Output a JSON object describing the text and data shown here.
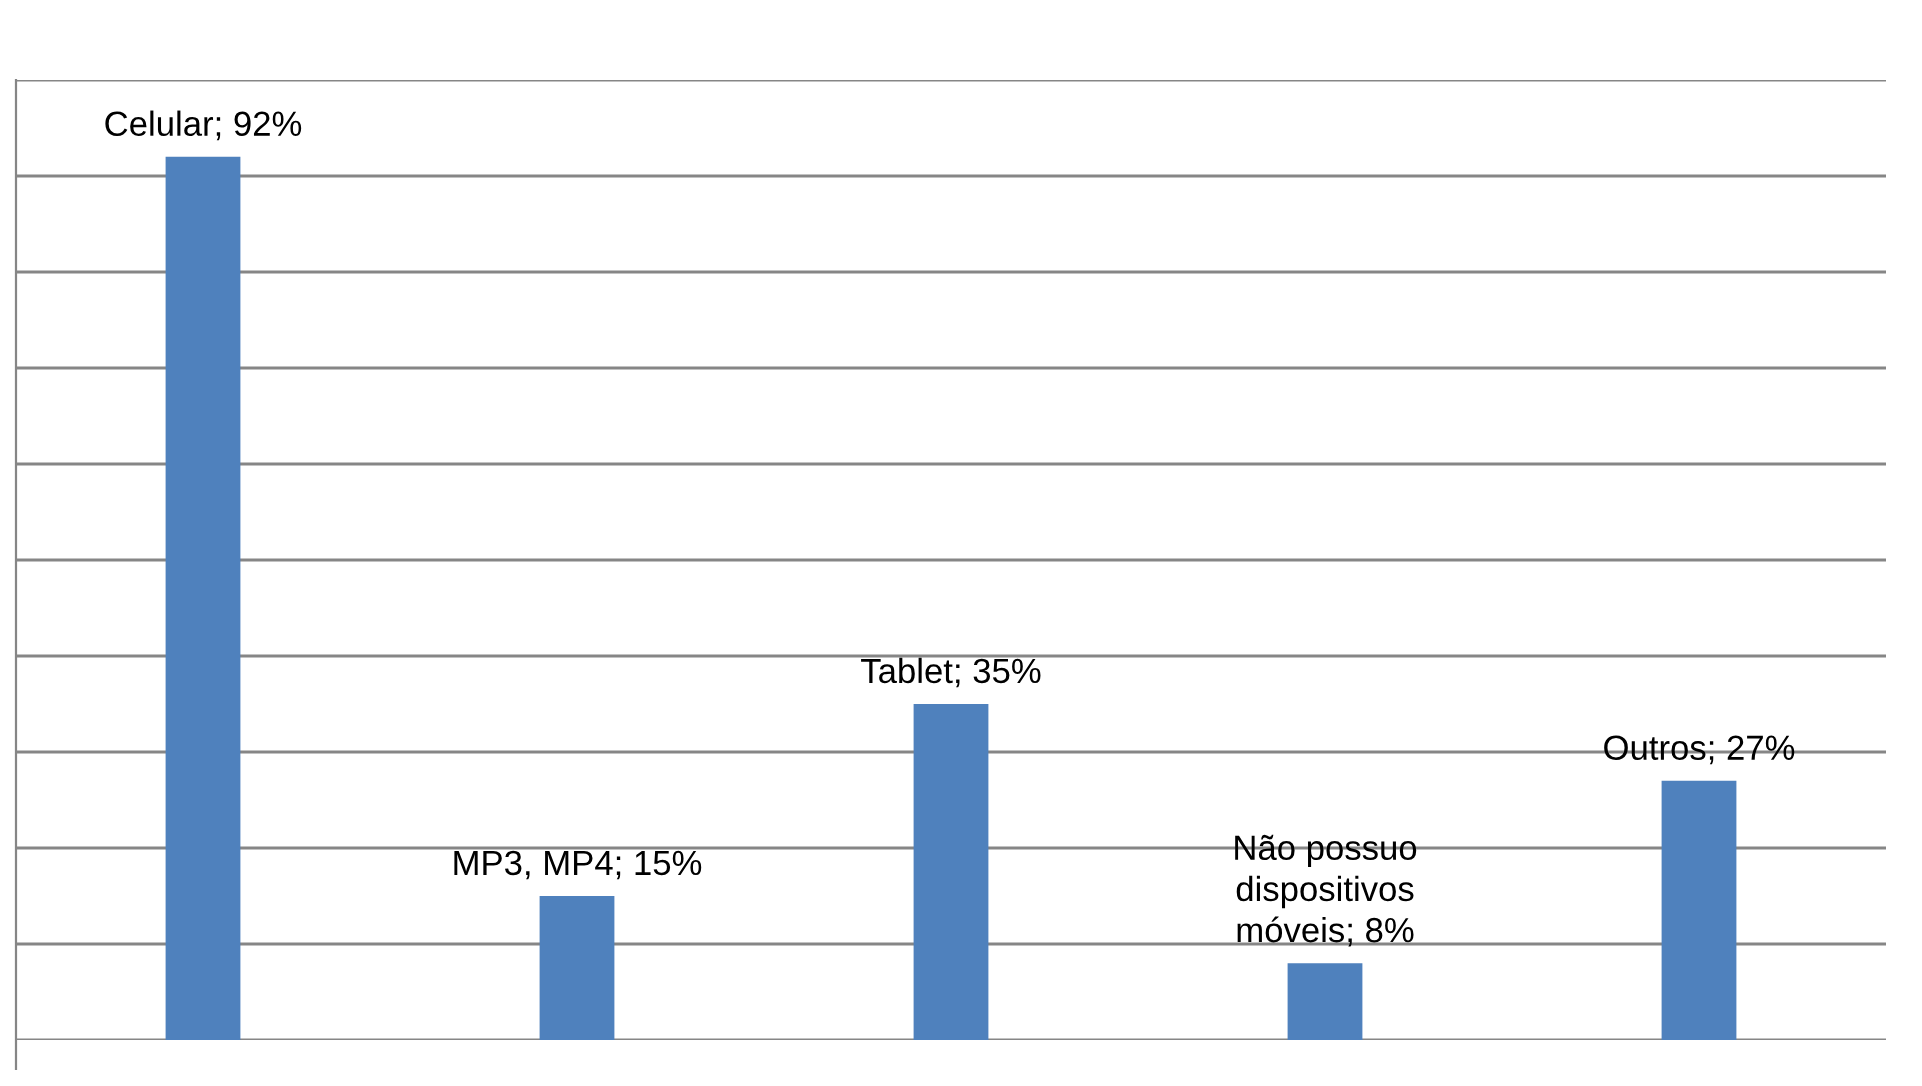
{
  "chart_data": {
    "type": "bar",
    "categories": [
      null,
      null,
      null,
      null,
      null
    ],
    "values": [
      92,
      15,
      35,
      8,
      27
    ],
    "value_labels": [
      "Celular; 92%",
      "MP3, MP4; 15%",
      "Tablet; 35%",
      "Não possuo\ndispositivos\nmóveis; 8%",
      "Outros; 27%"
    ],
    "color": "#4f81bd",
    "ylim": [
      0,
      100
    ],
    "yticks": [
      {
        "value": 0,
        "label": null
      },
      {
        "value": 10,
        "label": null
      },
      {
        "value": 20,
        "label": null
      },
      {
        "value": 30,
        "label": null
      },
      {
        "value": 40,
        "label": null
      },
      {
        "value": 50,
        "label": null
      },
      {
        "value": 60,
        "label": null
      },
      {
        "value": 70,
        "label": null
      },
      {
        "value": 80,
        "label": null
      },
      {
        "value": 90,
        "label": null
      },
      {
        "value": 100,
        "label": null
      }
    ],
    "grid": "y",
    "legend": false
  }
}
